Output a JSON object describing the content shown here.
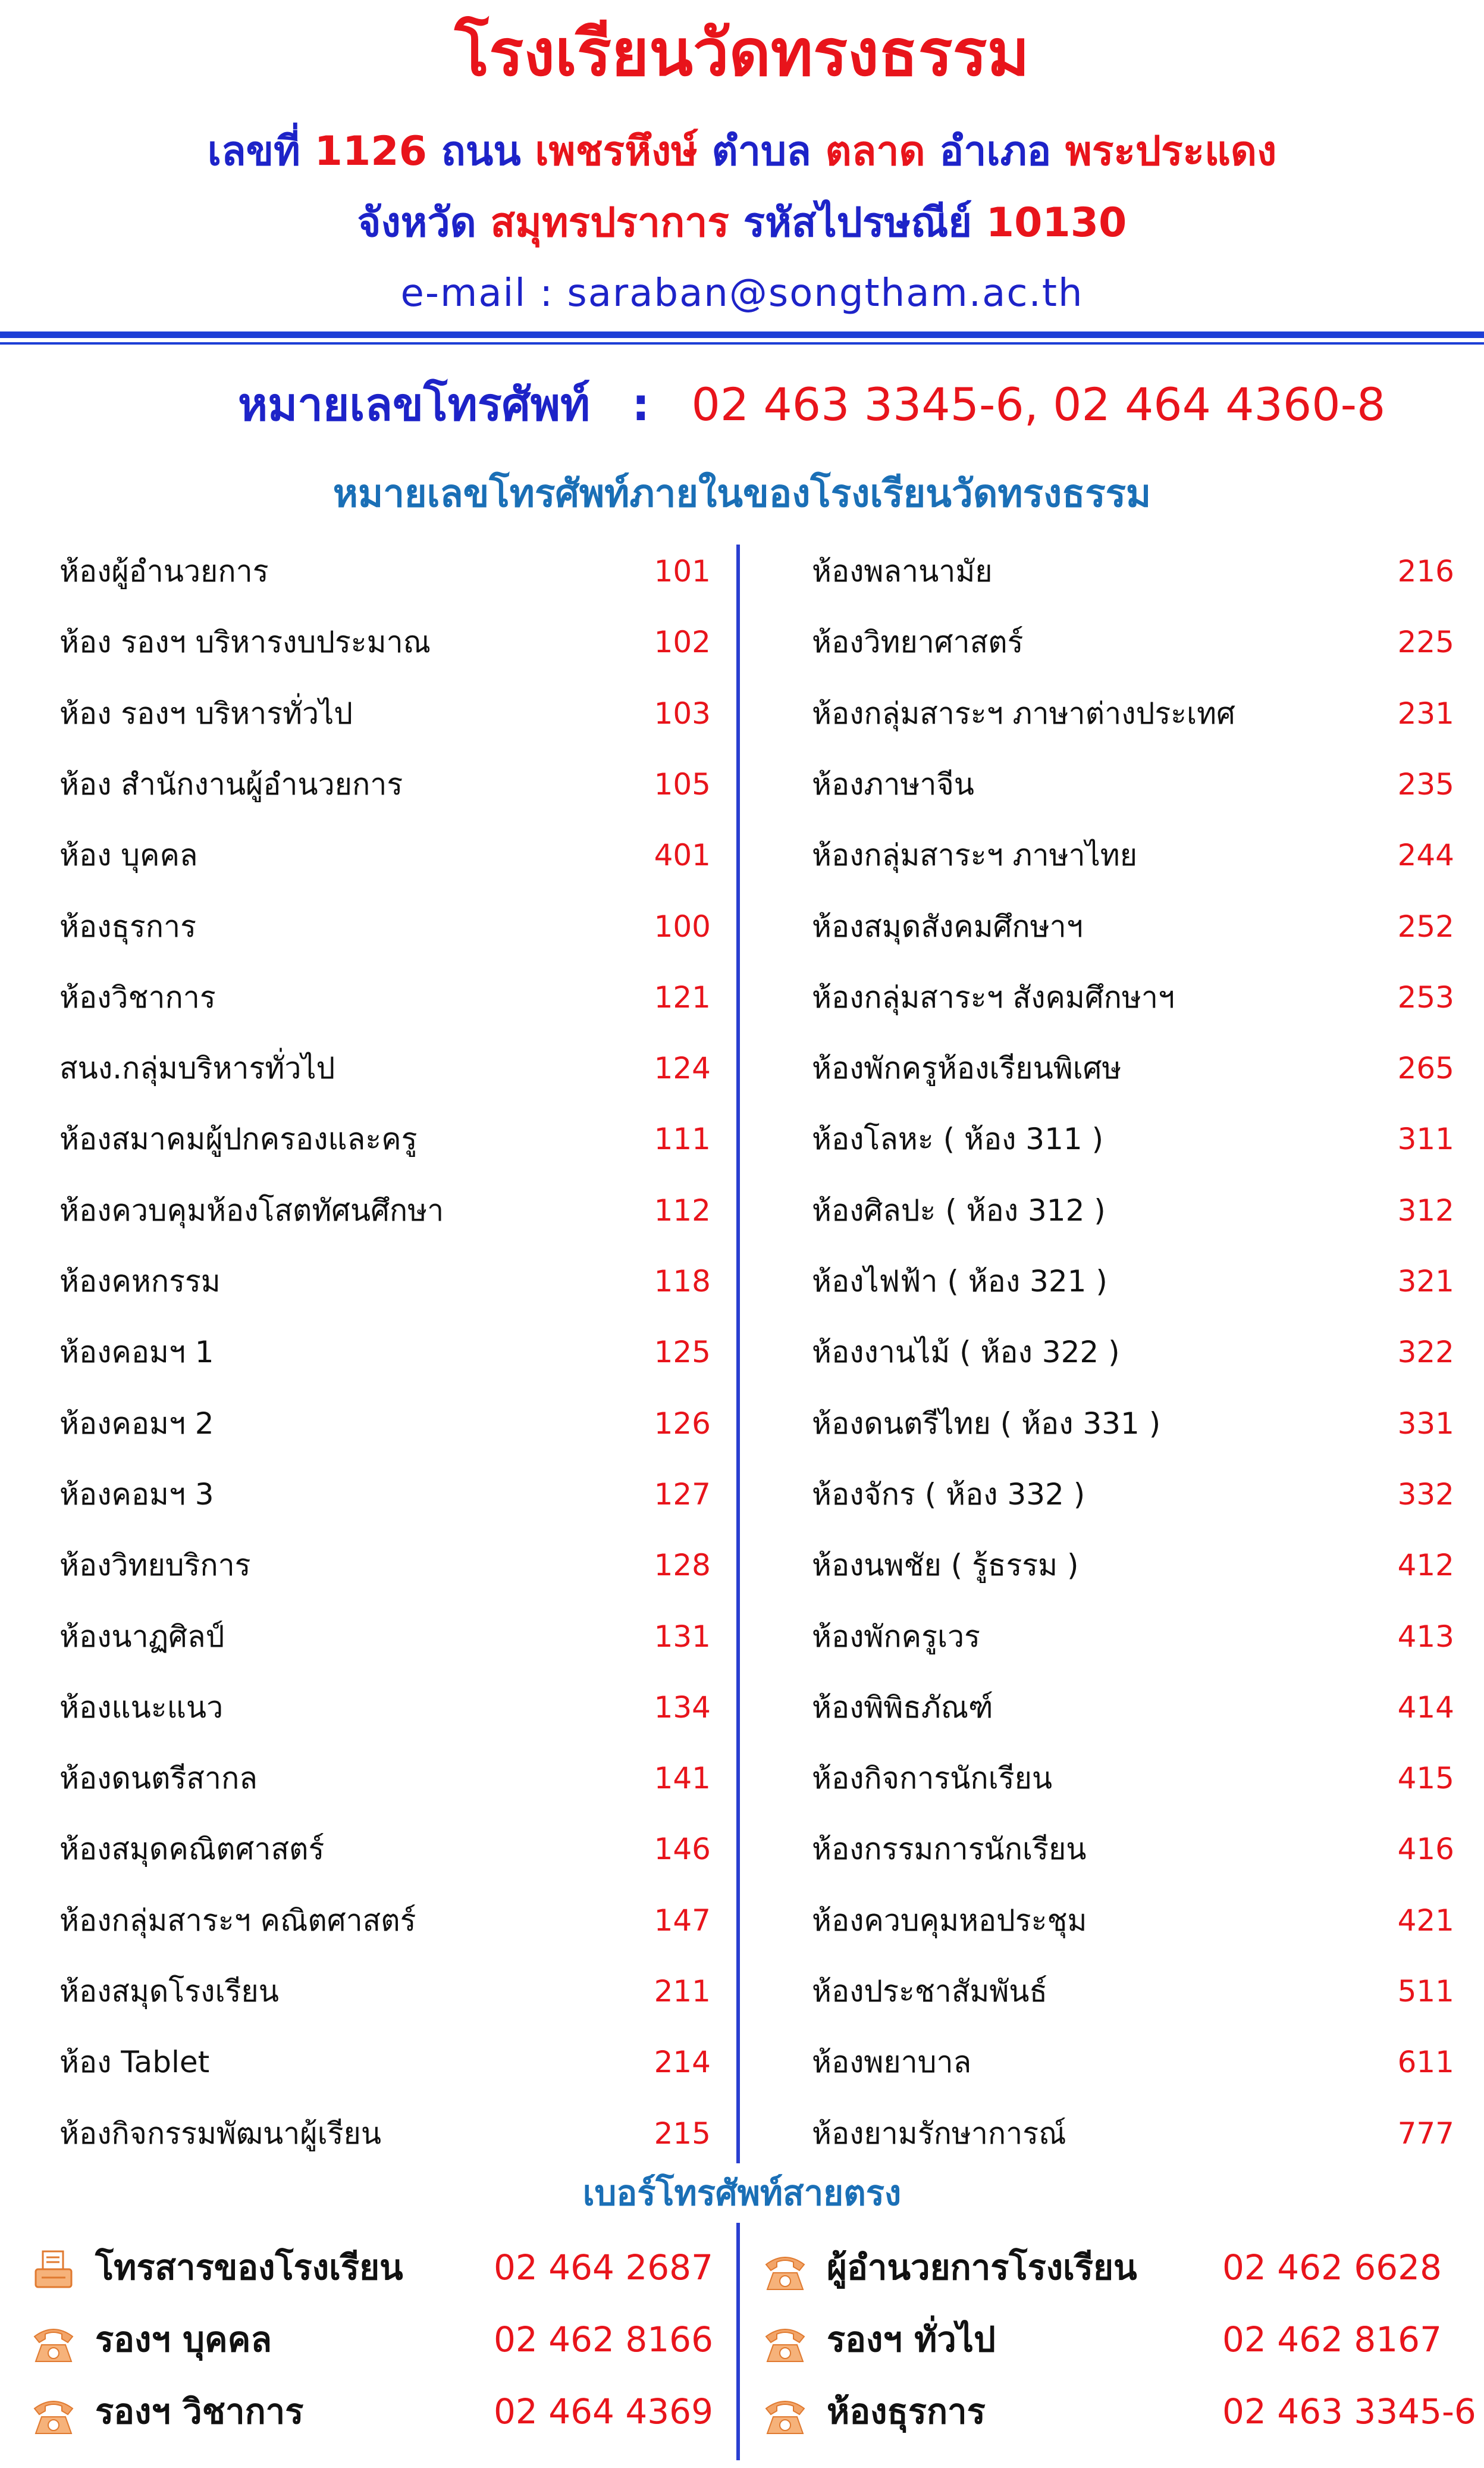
{
  "header": {
    "school_name": "โรงเรียนวัดทรงธรรม",
    "address_line1": [
      {
        "text": "เลขที่ ",
        "color": "blue"
      },
      {
        "text": "1126 ",
        "color": "red"
      },
      {
        "text": "ถนน ",
        "color": "blue"
      },
      {
        "text": "เพชรหึงษ์ ",
        "color": "red"
      },
      {
        "text": "ตำบล ",
        "color": "blue"
      },
      {
        "text": "ตลาด ",
        "color": "red"
      },
      {
        "text": "อำเภอ ",
        "color": "blue"
      },
      {
        "text": "พระประแดง",
        "color": "red"
      }
    ],
    "address_line2": [
      {
        "text": "จังหวัด ",
        "color": "blue"
      },
      {
        "text": "สมุทรปราการ ",
        "color": "red"
      },
      {
        "text": "รหัสไปรษณีย์ ",
        "color": "blue"
      },
      {
        "text": "10130",
        "color": "red"
      }
    ],
    "email": "e-mail : saraban@songtham.ac.th"
  },
  "phone": {
    "label": "หมายเลขโทรศัพท์",
    "separator": ":",
    "value": "02 463 3345-6, 02 464 4360-8"
  },
  "extensions_title": "หมายเลขโทรศัพท์ภายในของโรงเรียนวัดทรงธรรม",
  "extensions_left": [
    {
      "name": "ห้องผู้อำนวยการ",
      "ext": "101"
    },
    {
      "name": "ห้อง รองฯ บริหารงบประมาณ",
      "ext": "102"
    },
    {
      "name": "ห้อง รองฯ บริหารทั่วไป",
      "ext": "103"
    },
    {
      "name": "ห้อง สำนักงานผู้อำนวยการ",
      "ext": "105"
    },
    {
      "name": "ห้อง บุคคล",
      "ext": "401"
    },
    {
      "name": "ห้องธุรการ",
      "ext": "100"
    },
    {
      "name": "ห้องวิชาการ",
      "ext": "121"
    },
    {
      "name": "สนง.กลุ่มบริหารทั่วไป",
      "ext": "124"
    },
    {
      "name": "ห้องสมาคมผู้ปกครองและครู",
      "ext": "111"
    },
    {
      "name": "ห้องควบคุมห้องโสตทัศนศึกษา",
      "ext": "112"
    },
    {
      "name": "ห้องคหกรรม",
      "ext": "118"
    },
    {
      "name": "ห้องคอมฯ 1",
      "ext": "125"
    },
    {
      "name": "ห้องคอมฯ 2",
      "ext": "126"
    },
    {
      "name": "ห้องคอมฯ 3",
      "ext": "127"
    },
    {
      "name": "ห้องวิทยบริการ",
      "ext": "128"
    },
    {
      "name": "ห้องนาฏศิลป์",
      "ext": "131"
    },
    {
      "name": "ห้องแนะแนว",
      "ext": "134"
    },
    {
      "name": "ห้องดนตรีสากล",
      "ext": "141"
    },
    {
      "name": "ห้องสมุดคณิตศาสตร์",
      "ext": "146"
    },
    {
      "name": "ห้องกลุ่มสาระฯ คณิตศาสตร์",
      "ext": "147"
    },
    {
      "name": "ห้องสมุดโรงเรียน",
      "ext": "211"
    },
    {
      "name": "ห้อง Tablet",
      "ext": "214"
    },
    {
      "name": "ห้องกิจกรรมพัฒนาผู้เรียน",
      "ext": "215"
    }
  ],
  "extensions_right": [
    {
      "name": "ห้องพลานามัย",
      "ext": "216"
    },
    {
      "name": "ห้องวิทยาศาสตร์",
      "ext": "225"
    },
    {
      "name": "ห้องกลุ่มสาระฯ ภาษาต่างประเทศ",
      "ext": "231"
    },
    {
      "name": "ห้องภาษาจีน",
      "ext": "235"
    },
    {
      "name": "ห้องกลุ่มสาระฯ ภาษาไทย",
      "ext": "244"
    },
    {
      "name": "ห้องสมุดสังคมศึกษาฯ",
      "ext": "252"
    },
    {
      "name": "ห้องกลุ่มสาระฯ สังคมศึกษาฯ",
      "ext": "253"
    },
    {
      "name": "ห้องพักครูห้องเรียนพิเศษ",
      "ext": "265"
    },
    {
      "name": "ห้องโลหะ ( ห้อง 311 )",
      "ext": "311"
    },
    {
      "name": "ห้องศิลปะ ( ห้อง 312 )",
      "ext": "312"
    },
    {
      "name": "ห้องไฟฟ้า ( ห้อง 321 )",
      "ext": "321"
    },
    {
      "name": "ห้องงานไม้ ( ห้อง 322 )",
      "ext": "322"
    },
    {
      "name": "ห้องดนตรีไทย ( ห้อง 331 )",
      "ext": "331"
    },
    {
      "name": "ห้องจักร ( ห้อง 332 )",
      "ext": "332"
    },
    {
      "name": "ห้องนพชัย ( รู้ธรรม )",
      "ext": "412"
    },
    {
      "name": "ห้องพักครูเวร",
      "ext": "413"
    },
    {
      "name": "ห้องพิพิธภัณฑ์",
      "ext": "414"
    },
    {
      "name": "ห้องกิจการนักเรียน",
      "ext": "415"
    },
    {
      "name": "ห้องกรรมการนักเรียน",
      "ext": "416"
    },
    {
      "name": "ห้องควบคุมหอประชุม",
      "ext": "421"
    },
    {
      "name": "ห้องประชาสัมพันธ์",
      "ext": "511"
    },
    {
      "name": "ห้องพยาบาล",
      "ext": "611"
    },
    {
      "name": "ห้องยามรักษาการณ์",
      "ext": "777"
    }
  ],
  "direct_title": "เบอร์โทรศัพท์สายตรง",
  "direct_left": [
    {
      "icon": "fax-icon",
      "name": "โทรสารของโรงเรียน",
      "number": "02 464 2687"
    },
    {
      "icon": "telephone-icon",
      "name": "รองฯ บุคคล",
      "number": "02 462 8166"
    },
    {
      "icon": "telephone-icon",
      "name": "รองฯ วิชาการ",
      "number": "02 464 4369"
    }
  ],
  "direct_right": [
    {
      "icon": "telephone-icon",
      "name": "ผู้อำนวยการโรงเรียน",
      "number": "02 462 6628"
    },
    {
      "icon": "telephone-icon",
      "name": "รองฯ ทั่วไป",
      "number": "02 462 8167"
    },
    {
      "icon": "telephone-icon",
      "name": "ห้องธุรการ",
      "number": "02 463 3345-6"
    }
  ],
  "colors": {
    "red": "#e8141b",
    "blue": "#1d23c8",
    "title_blue": "#1a6fb6",
    "rule_blue": "#1d3fd6",
    "icon_orange": "#f0a060",
    "icon_dark_orange": "#e07a30"
  }
}
